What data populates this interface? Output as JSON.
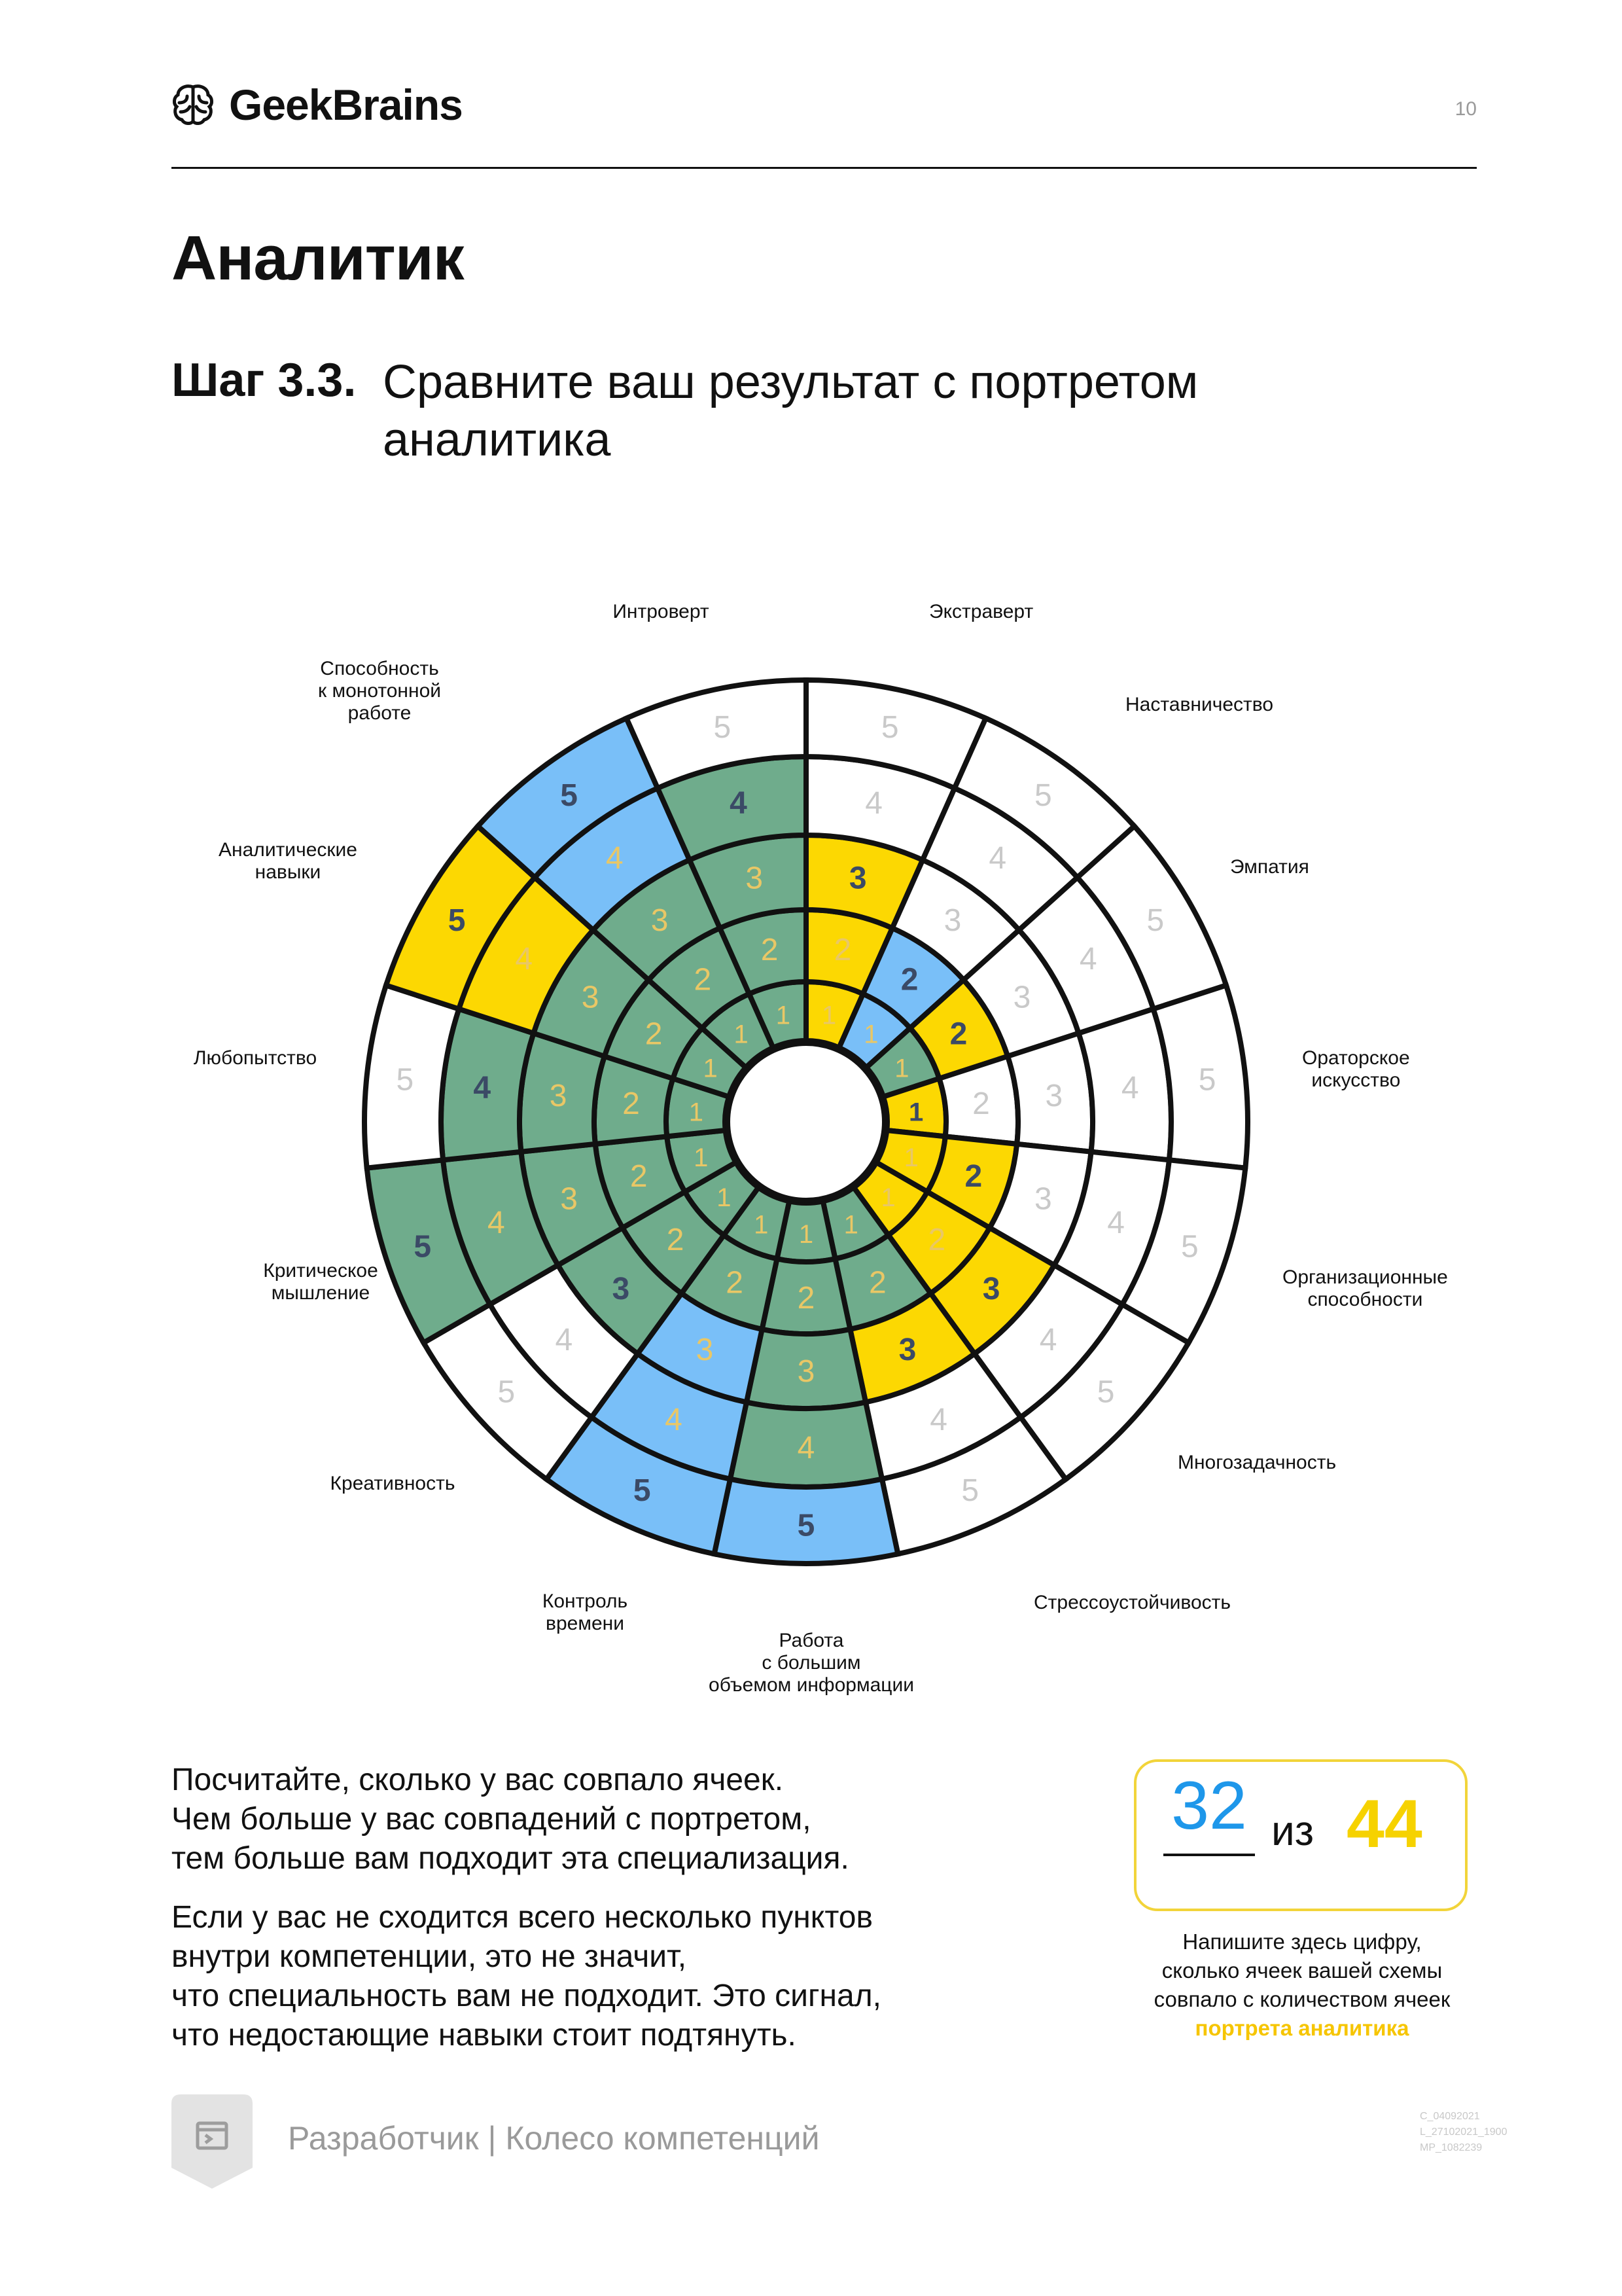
{
  "header": {
    "brand": "GeekBrains",
    "page_number": "10"
  },
  "title": "Аналитик",
  "step": {
    "label": "Шаг 3.3.",
    "text": "Сравните ваш результат с портретом аналитика"
  },
  "colors": {
    "green": "#6fac8c",
    "blue": "#79bff8",
    "yellow": "#fcd802",
    "line": "#111111"
  },
  "wheel": {
    "rings": 5,
    "segments": [
      {
        "label": "Экстраверт",
        "level": 3,
        "color": "yellow"
      },
      {
        "label": "Наставничество",
        "level": 2,
        "color": "blue"
      },
      {
        "label": "Эмпатия",
        "level": 2,
        "color": "yellow"
      },
      {
        "label": "Ораторское искусство",
        "level": 1,
        "color": "yellow"
      },
      {
        "label": "Организационные способности",
        "level": 2,
        "color": "yellow"
      },
      {
        "label": "Многозадачность",
        "level": 3,
        "color": "yellow"
      },
      {
        "label": "Стрессоустойчивость",
        "level": 3,
        "color": "yellow"
      },
      {
        "label": "Работа с большим объемом информации",
        "level": 5,
        "color": "mixed"
      },
      {
        "label": "Контроль времени",
        "level": 5,
        "color": "mixed"
      },
      {
        "label": "Креативность",
        "level": 3,
        "color": "mixed"
      },
      {
        "label": "Критическое мышление",
        "level": 5,
        "color": "green"
      },
      {
        "label": "Любопытство",
        "level": 4,
        "color": "green"
      },
      {
        "label": "Аналитические навыки",
        "level": 5,
        "color": "mixed"
      },
      {
        "label": "Способность к монотонной работе",
        "level": 5,
        "color": "mixed"
      },
      {
        "label": "Интроверт",
        "level": 4,
        "color": "green"
      }
    ]
  },
  "text": {
    "para1": [
      "Посчитайте, сколько у вас совпало ячеек.",
      "Чем больше у вас совпадений с портретом,",
      "тем больше вам подходит эта специализация."
    ],
    "para2": [
      "Если у вас не сходится всего несколько пунктов",
      "внутри компетенции, это не значит,",
      "что специальность вам не подходит. Это сигнал,",
      "что недостающие навыки стоит подтянуть."
    ]
  },
  "score": {
    "value": "32",
    "of": "из",
    "total": "44",
    "note": [
      "Напишите здесь цифру,",
      "сколько ячеек вашей схемы",
      "совпало с количеством ячеек"
    ],
    "note_highlight": "портрета аналитика"
  },
  "footer": {
    "text": "Разработчик | Колесо компетенций",
    "codes": [
      "C_04092021",
      "L_27102021_1900",
      "MP_1082239"
    ]
  }
}
